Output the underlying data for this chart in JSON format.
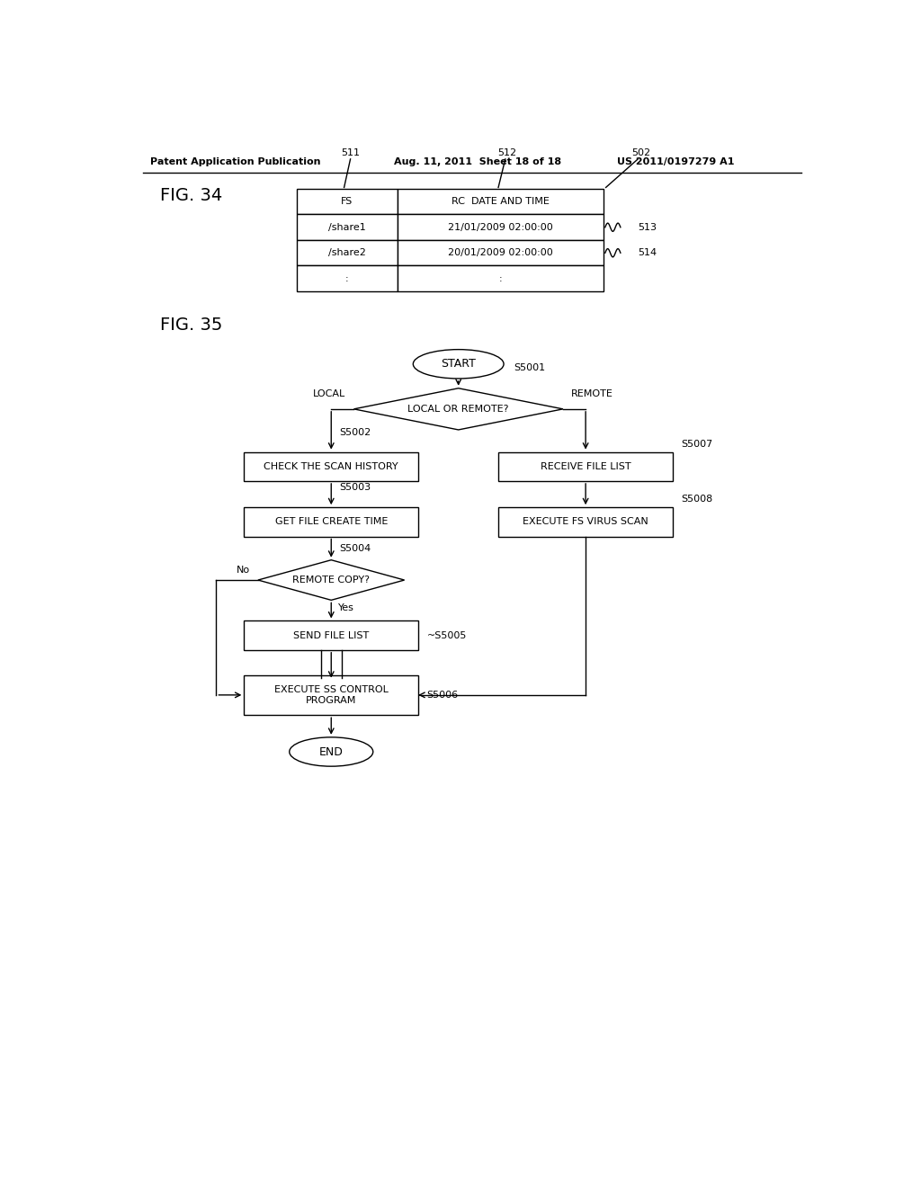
{
  "bg_color": "#ffffff",
  "header_left": "Patent Application Publication",
  "header_mid": "Aug. 11, 2011  Sheet 18 of 18",
  "header_right": "US 2011/0197279 A1",
  "fig34_label": "FIG. 34",
  "fig35_label": "FIG. 35",
  "table": {
    "col1_header": "FS",
    "col2_header": "RC  DATE AND TIME",
    "rows": [
      [
        "/share1",
        "21/01/2009 02:00:00"
      ],
      [
        "/share2",
        "20/01/2009 02:00:00"
      ],
      [
        ":",
        ":"
      ]
    ],
    "label_511": "511",
    "label_512": "512",
    "label_502": "502",
    "label_513": "513",
    "label_514": "514"
  },
  "flowchart": {
    "start_label": "START",
    "end_label": "END",
    "s5001": "S5001",
    "s5002": "S5002",
    "s5003": "S5003",
    "s5004": "S5004",
    "s5005": "S5005",
    "s5006": "S5006",
    "s5007": "S5007",
    "s5008": "S5008",
    "decision1": "LOCAL OR REMOTE?",
    "local_label": "LOCAL",
    "remote_label": "REMOTE",
    "box_s5002": "CHECK THE SCAN HISTORY",
    "box_s5003": "GET FILE CREATE TIME",
    "decision_s5004": "REMOTE COPY?",
    "no_label": "No",
    "yes_label": "Yes",
    "box_s5005": "SEND FILE LIST",
    "box_s5006": "EXECUTE SS CONTROL\nPROGRAM",
    "box_s5007": "RECEIVE FILE LIST",
    "box_s5008": "EXECUTE FS VIRUS SCAN"
  }
}
